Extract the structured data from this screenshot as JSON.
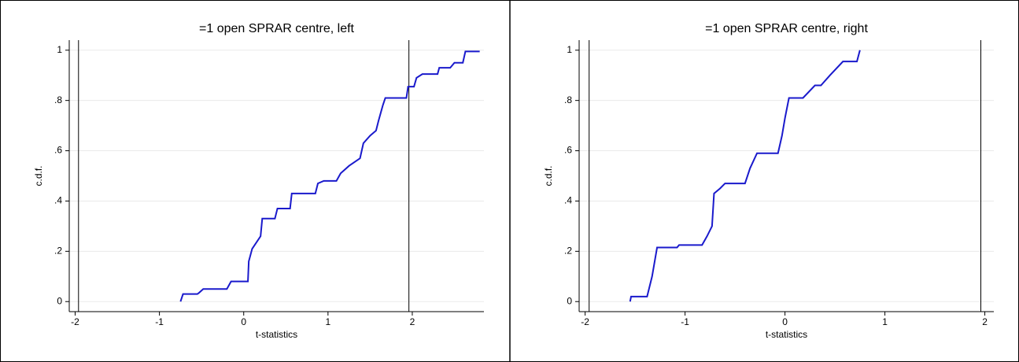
{
  "chart_data": [
    {
      "type": "line",
      "title": "=1 open SPRAR centre, left",
      "xlabel": "t-statistics",
      "ylabel": "c.d.f.",
      "xlim": [
        -2.07,
        2.85
      ],
      "ylim": [
        -0.04,
        1.04
      ],
      "xticks": [
        -2,
        -1,
        0,
        1,
        2
      ],
      "yticks": [
        0,
        {
          "value": 0.2,
          "label": ".2"
        },
        {
          "value": 0.4,
          "label": ".4"
        },
        {
          "value": 0.6,
          "label": ".6"
        },
        {
          "value": 0.8,
          "label": ".8"
        },
        1
      ],
      "grid": true,
      "reference_lines": [
        -1.96,
        1.96
      ],
      "series": [
        {
          "color": "#1a1acc",
          "x": [
            -0.75,
            -0.72,
            -0.55,
            -0.53,
            -0.48,
            -0.2,
            -0.15,
            0.05,
            0.06,
            0.1,
            0.2,
            0.22,
            0.37,
            0.4,
            0.55,
            0.57,
            0.85,
            0.88,
            0.95,
            1.1,
            1.15,
            1.25,
            1.38,
            1.42,
            1.5,
            1.57,
            1.6,
            1.65,
            1.68,
            1.93,
            1.95,
            2.02,
            2.05,
            2.12,
            2.3,
            2.32,
            2.45,
            2.5,
            2.6,
            2.63,
            2.8
          ],
          "values": [
            0,
            0.03,
            0.03,
            0.035,
            0.05,
            0.05,
            0.08,
            0.08,
            0.16,
            0.21,
            0.26,
            0.33,
            0.33,
            0.37,
            0.37,
            0.43,
            0.43,
            0.47,
            0.48,
            0.48,
            0.51,
            0.54,
            0.57,
            0.63,
            0.66,
            0.68,
            0.72,
            0.78,
            0.81,
            0.81,
            0.855,
            0.855,
            0.89,
            0.905,
            0.905,
            0.93,
            0.93,
            0.95,
            0.95,
            0.995,
            0.995
          ]
        }
      ]
    },
    {
      "type": "line",
      "title": "=1 open SPRAR centre, right",
      "xlabel": "t-statistics",
      "ylabel": "c.d.f.",
      "xlim": [
        -2.06,
        2.09
      ],
      "ylim": [
        -0.04,
        1.04
      ],
      "xticks": [
        -2,
        -1,
        0,
        1,
        2
      ],
      "yticks": [
        0,
        {
          "value": 0.2,
          "label": ".2"
        },
        {
          "value": 0.4,
          "label": ".4"
        },
        {
          "value": 0.6,
          "label": ".6"
        },
        {
          "value": 0.8,
          "label": ".8"
        },
        1
      ],
      "grid": true,
      "reference_lines": [
        -1.96,
        1.96
      ],
      "series": [
        {
          "color": "#1a1acc",
          "x": [
            -1.55,
            -1.54,
            -1.38,
            -1.33,
            -1.28,
            -1.08,
            -1.06,
            -0.83,
            -0.78,
            -0.73,
            -0.71,
            -0.65,
            -0.6,
            -0.4,
            -0.35,
            -0.28,
            -0.07,
            -0.03,
            0.0,
            0.02,
            0.04,
            0.18,
            0.3,
            0.36,
            0.45,
            0.58,
            0.72,
            0.75
          ],
          "values": [
            0,
            0.02,
            0.02,
            0.1,
            0.215,
            0.215,
            0.225,
            0.225,
            0.26,
            0.3,
            0.43,
            0.45,
            0.47,
            0.47,
            0.53,
            0.59,
            0.59,
            0.66,
            0.73,
            0.77,
            0.81,
            0.81,
            0.86,
            0.86,
            0.9,
            0.955,
            0.955,
            1.0
          ]
        }
      ]
    }
  ]
}
